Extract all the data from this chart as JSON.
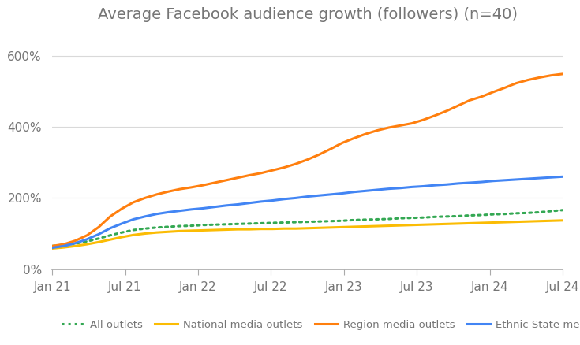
{
  "title": "Average Facebook audience growth (followers) (n=40)",
  "title_color": "#757575",
  "title_fontsize": 14,
  "background_color": "#ffffff",
  "ylim": [
    0,
    660
  ],
  "yticks": [
    0,
    200,
    400,
    600
  ],
  "ytick_labels": [
    "0%",
    "200%",
    "400%",
    "600%"
  ],
  "grid_color": "#d9d9d9",
  "xtick_labels": [
    "Jan 21",
    "Jul 21",
    "Jan 22",
    "Jul 22",
    "Jan 23",
    "Jul 23",
    "Jan 24",
    "Jul 24"
  ],
  "xtick_positions": [
    0,
    6,
    12,
    18,
    24,
    30,
    36,
    42
  ],
  "xlim": [
    0,
    42
  ],
  "series": {
    "all_outlets": {
      "label": "All outlets",
      "color": "#34a853",
      "linestyle": "dotted",
      "linewidth": 2.2,
      "values": [
        65,
        68,
        72,
        78,
        86,
        95,
        103,
        110,
        114,
        117,
        119,
        121,
        122,
        124,
        125,
        126,
        127,
        128,
        129,
        130,
        131,
        132,
        133,
        134,
        135,
        136,
        138,
        139,
        140,
        141,
        143,
        144,
        145,
        147,
        148,
        149,
        151,
        152,
        154,
        155,
        157,
        158,
        160,
        163,
        166
      ]
    },
    "national": {
      "label": "National media outlets",
      "color": "#fbbc04",
      "linestyle": "solid",
      "linewidth": 2.2,
      "values": [
        58,
        61,
        65,
        70,
        76,
        83,
        90,
        96,
        100,
        103,
        105,
        107,
        108,
        109,
        110,
        111,
        112,
        112,
        113,
        113,
        114,
        114,
        115,
        116,
        117,
        118,
        119,
        120,
        121,
        122,
        123,
        124,
        125,
        126,
        127,
        128,
        129,
        130,
        131,
        132,
        133,
        134,
        135,
        136,
        137
      ]
    },
    "region": {
      "label": "Region media outlets",
      "color": "#ff7f0e",
      "linestyle": "solid",
      "linewidth": 2.2,
      "values": [
        65,
        70,
        80,
        95,
        118,
        148,
        170,
        188,
        200,
        210,
        218,
        225,
        230,
        236,
        243,
        250,
        257,
        264,
        270,
        278,
        286,
        296,
        308,
        322,
        338,
        355,
        368,
        380,
        390,
        398,
        404,
        410,
        420,
        432,
        445,
        460,
        475,
        485,
        498,
        510,
        523,
        532,
        539,
        545,
        549
      ]
    },
    "ethnic": {
      "label": "Ethnic State media outlets",
      "color": "#4285f4",
      "linestyle": "solid",
      "linewidth": 2.2,
      "values": [
        60,
        65,
        73,
        84,
        98,
        115,
        128,
        140,
        148,
        155,
        160,
        164,
        168,
        171,
        175,
        179,
        182,
        186,
        190,
        193,
        197,
        200,
        204,
        207,
        210,
        213,
        217,
        220,
        223,
        226,
        228,
        231,
        233,
        236,
        238,
        241,
        243,
        245,
        248,
        250,
        252,
        254,
        256,
        258,
        260
      ]
    }
  },
  "legend_entries": [
    {
      "label": "All outlets",
      "color": "#34a853",
      "linestyle": "dotted"
    },
    {
      "label": "National media outlets",
      "color": "#fbbc04",
      "linestyle": "solid"
    },
    {
      "label": "Region media outlets",
      "color": "#ff7f0e",
      "linestyle": "solid"
    },
    {
      "label": "Ethnic State media outlets",
      "color": "#4285f4",
      "linestyle": "solid"
    }
  ]
}
